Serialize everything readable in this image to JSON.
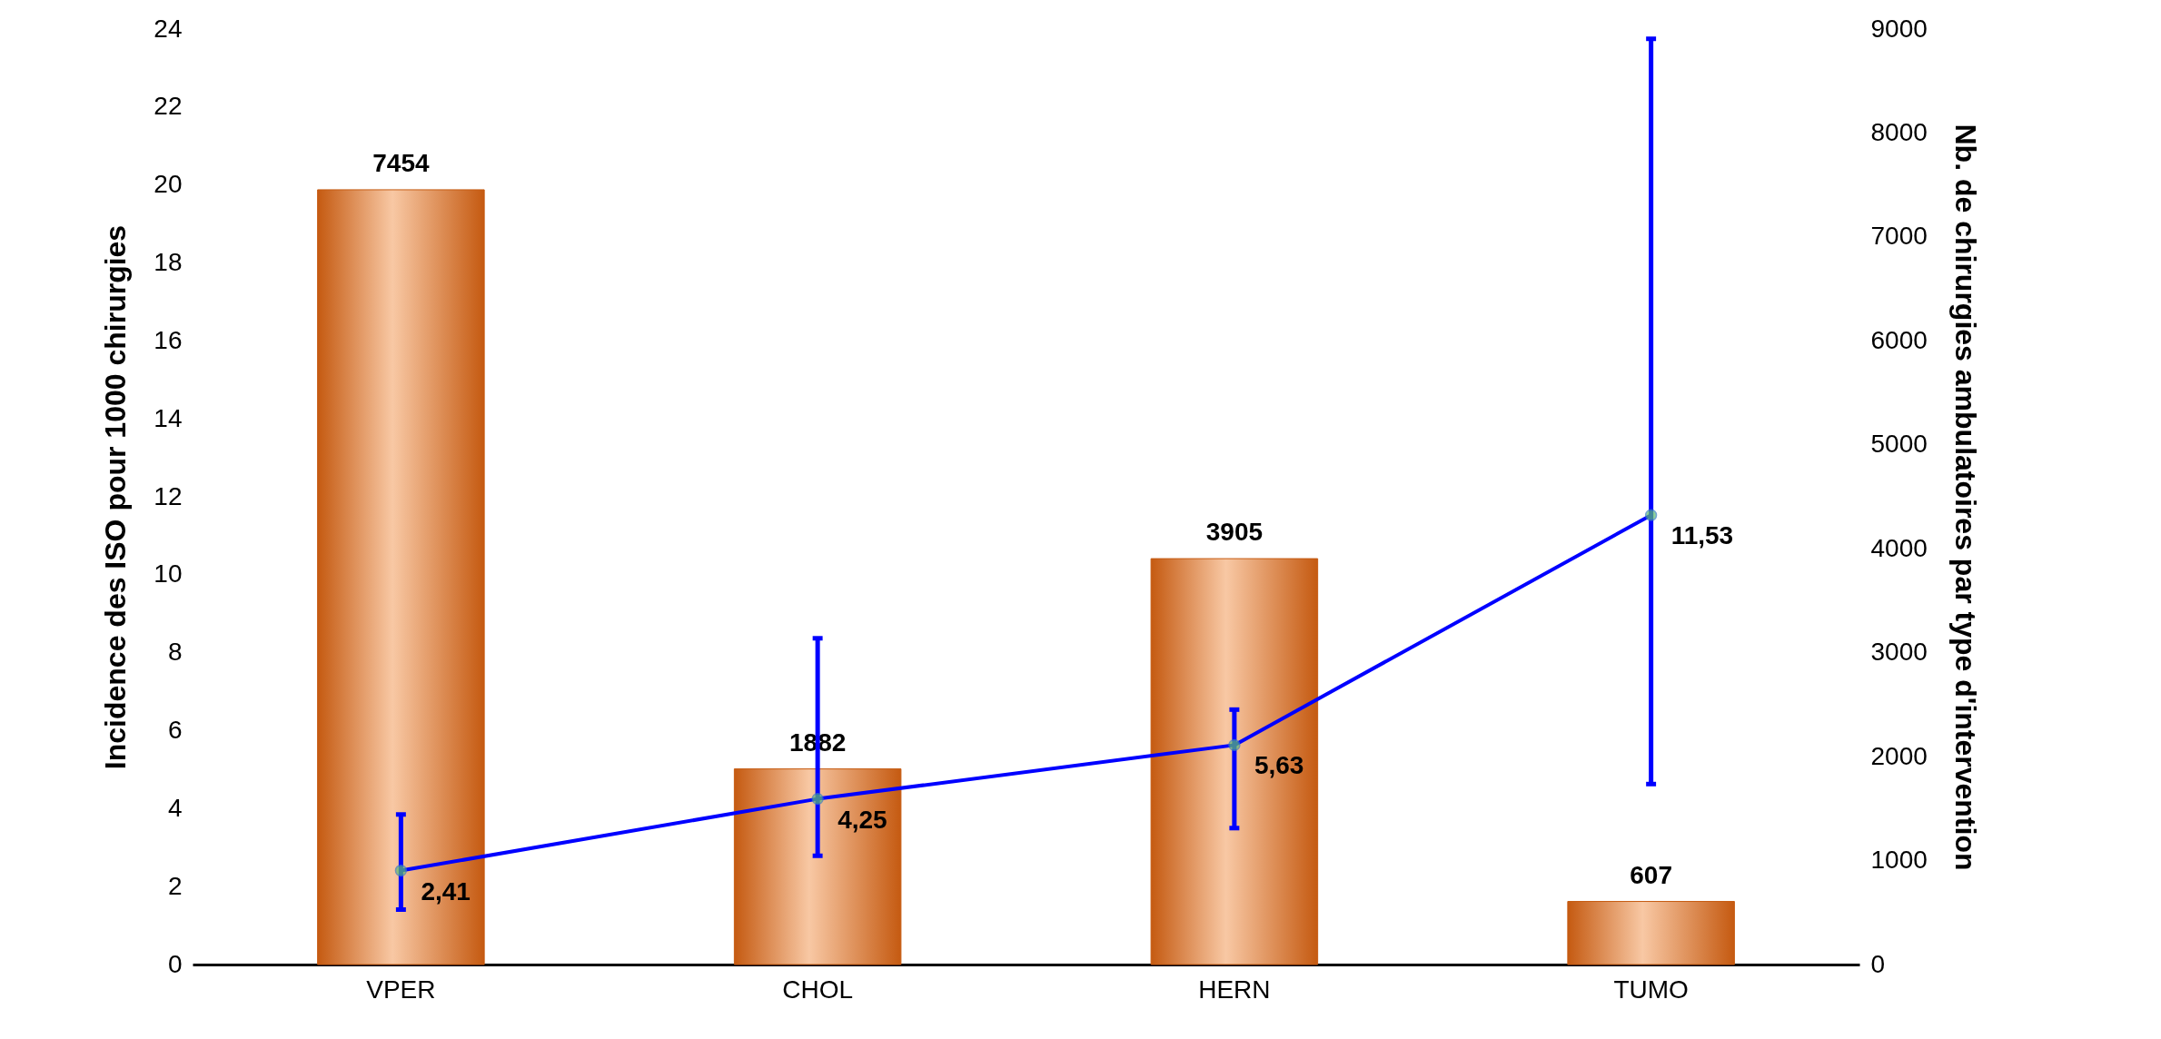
{
  "chart_data": {
    "type": "bar",
    "categories": [
      "VPER",
      "CHOL",
      "HERN",
      "TUMO"
    ],
    "ylabel": "Incidence des ISO pour 1000 chirurgies",
    "y2label": "Nb. de chirurgies ambulatoires par type d'intervention",
    "ylim": [
      0,
      24
    ],
    "yticks": [
      0,
      2,
      4,
      6,
      8,
      10,
      12,
      14,
      16,
      18,
      20,
      22,
      24
    ],
    "y2lim": [
      0,
      9000
    ],
    "y2ticks": [
      0,
      1000,
      2000,
      3000,
      4000,
      5000,
      6000,
      7000,
      8000,
      9000
    ],
    "series": [
      {
        "axis": "y2",
        "color": "#c55a11",
        "values": [
          7454,
          1882,
          3905,
          607
        ]
      },
      {
        "type": "line",
        "axis": "y",
        "color": "#0000ff",
        "marker": "circle",
        "values": [
          2.41,
          4.25,
          5.63,
          11.53
        ],
        "value_labels": [
          "2,41",
          "4,25",
          "5,63",
          "11,53"
        ],
        "errors": [
          [
            1.41,
            3.85
          ],
          [
            2.79,
            8.37
          ],
          [
            3.5,
            6.54
          ],
          [
            4.63,
            23.75
          ]
        ]
      }
    ],
    "data_labels": true,
    "grid": false
  }
}
